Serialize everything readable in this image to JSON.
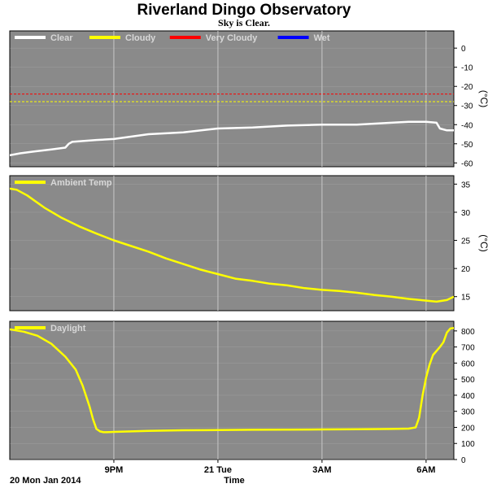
{
  "page": {
    "title": "Riverland Dingo Observatory",
    "subtitle": "Sky is Clear."
  },
  "footer": {
    "date_label": "20 Mon Jan 2014",
    "axis_label": "Time"
  },
  "colors": {
    "plot_background": "#8a8a8a",
    "grid": "#c8c8c8",
    "clear": "#ffffff",
    "cloudy": "#ffff00",
    "very_cloudy": "#ff0000",
    "wet": "#0000ff",
    "ambient": "#ffff00",
    "daylight": "#ffff00"
  },
  "x_axis": {
    "range": [
      18.0,
      30.8
    ],
    "ticks": [
      {
        "value": 21,
        "label": "9PM"
      },
      {
        "value": 24,
        "label": "21 Tue"
      },
      {
        "value": 27,
        "label": "3AM"
      },
      {
        "value": 30,
        "label": "6AM"
      }
    ]
  },
  "chart_data": [
    {
      "type": "line",
      "id": "sky",
      "legend": [
        {
          "label": "Clear",
          "color": "#ffffff"
        },
        {
          "label": "Cloudy",
          "color": "#ffff00"
        },
        {
          "label": "Very Cloudy",
          "color": "#ff0000"
        },
        {
          "label": "Wet",
          "color": "#0000ff"
        }
      ],
      "unit": "(°C)",
      "ylim": [
        -62,
        9
      ],
      "yticks": [
        0,
        -10,
        -20,
        -30,
        -40,
        -50,
        -60
      ],
      "thresholds": [
        {
          "name": "Very Cloudy",
          "value": -24,
          "color": "#ff0000"
        },
        {
          "name": "Cloudy",
          "value": -28,
          "color": "#ffff00"
        }
      ],
      "series": [
        {
          "name": "Clear",
          "color": "#ffffff",
          "x": [
            18.0,
            18.3,
            18.7,
            19.2,
            19.6,
            19.7,
            19.8,
            20.5,
            21.0,
            22.0,
            23.0,
            24.0,
            25.0,
            26.0,
            27.0,
            28.0,
            29.0,
            29.5,
            30.0,
            30.3,
            30.4,
            30.6,
            30.8
          ],
          "y": [
            -56,
            -55,
            -54,
            -53,
            -52,
            -50,
            -49,
            -48,
            -47.5,
            -45,
            -44,
            -42,
            -41.5,
            -40.5,
            -40,
            -40,
            -39,
            -38.5,
            -38.5,
            -39,
            -42,
            -43,
            -43
          ]
        }
      ]
    },
    {
      "type": "line",
      "id": "ambient",
      "legend": [
        {
          "label": "Ambient Temp",
          "color": "#ffff00"
        }
      ],
      "unit": "(°C)",
      "ylim": [
        12.5,
        36.5
      ],
      "yticks": [
        35,
        30,
        25,
        20,
        15
      ],
      "series": [
        {
          "name": "Ambient Temp",
          "color": "#ffff00",
          "x": [
            18.0,
            18.2,
            18.5,
            19.0,
            19.5,
            20.0,
            20.5,
            21.0,
            21.5,
            22.0,
            22.5,
            23.0,
            23.5,
            24.0,
            24.5,
            25.0,
            25.5,
            26.0,
            26.5,
            27.0,
            27.5,
            28.0,
            28.5,
            29.0,
            29.5,
            30.0,
            30.3,
            30.6,
            30.8
          ],
          "y": [
            34.2,
            34.0,
            33.0,
            30.8,
            29.0,
            27.5,
            26.2,
            25.0,
            24.0,
            23.0,
            21.8,
            20.8,
            19.8,
            19.0,
            18.2,
            17.8,
            17.3,
            17.0,
            16.5,
            16.2,
            16.0,
            15.7,
            15.3,
            15.0,
            14.6,
            14.3,
            14.1,
            14.4,
            15.0
          ]
        }
      ]
    },
    {
      "type": "line",
      "id": "daylight",
      "legend": [
        {
          "label": "Daylight",
          "color": "#ffff00"
        }
      ],
      "unit": "",
      "ylim": [
        0,
        860
      ],
      "yticks": [
        800,
        700,
        600,
        500,
        400,
        300,
        200,
        100,
        0
      ],
      "series": [
        {
          "name": "Daylight",
          "color": "#ffff00",
          "x": [
            18.0,
            18.4,
            18.8,
            19.2,
            19.6,
            19.9,
            20.1,
            20.3,
            20.4,
            20.5,
            20.6,
            20.7,
            20.8,
            21.0,
            21.5,
            22.0,
            23.0,
            24.0,
            25.0,
            26.0,
            27.0,
            28.0,
            29.0,
            29.5,
            29.7,
            29.8,
            29.9,
            30.0,
            30.1,
            30.2,
            30.4,
            30.5,
            30.6,
            30.7,
            30.8
          ],
          "y": [
            810,
            795,
            770,
            720,
            640,
            560,
            460,
            330,
            250,
            190,
            175,
            170,
            170,
            172,
            175,
            178,
            182,
            183,
            185,
            186,
            187,
            188,
            190,
            192,
            200,
            260,
            400,
            510,
            590,
            650,
            700,
            730,
            790,
            815,
            818
          ]
        }
      ]
    }
  ]
}
